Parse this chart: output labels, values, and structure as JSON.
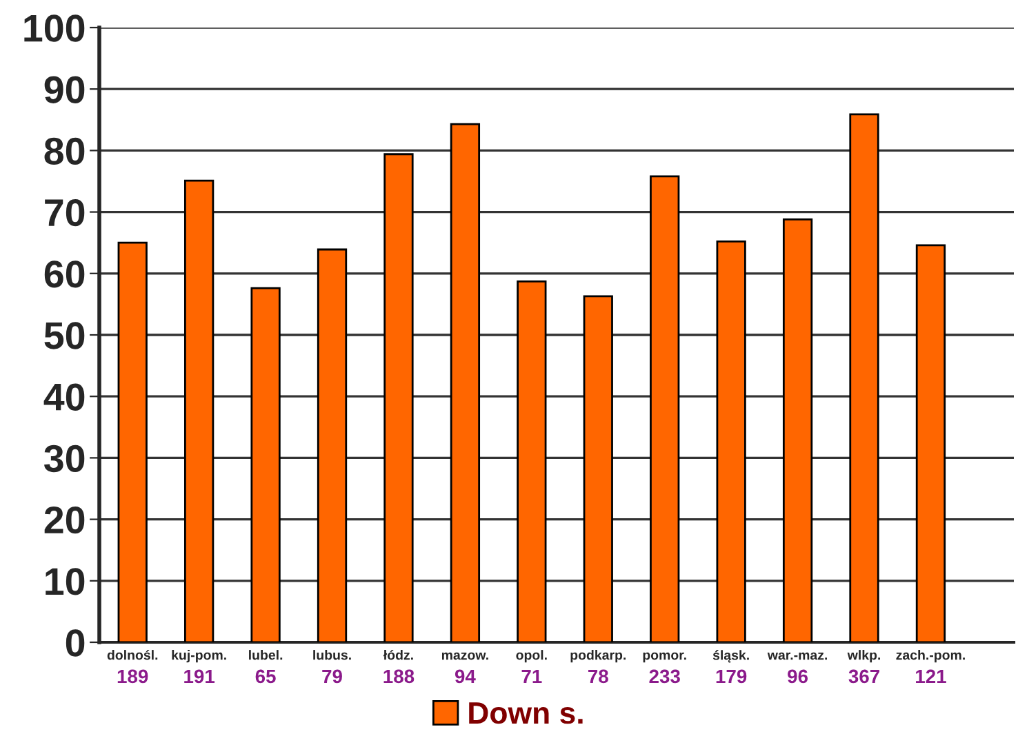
{
  "chart_data": {
    "type": "bar",
    "categories": [
      "dolnośl.",
      "kuj-pom.",
      "lubel.",
      "lubus.",
      "łódz.",
      "mazow.",
      "opol.",
      "podkarp.",
      "pomor.",
      "śląsk.",
      "war.-maz.",
      "wlkp.",
      "zach.-pom."
    ],
    "series": [
      {
        "name": "Down s.",
        "color": "#ff6600",
        "values": [
          65.0,
          75.1,
          57.6,
          63.9,
          79.4,
          84.3,
          58.7,
          56.3,
          75.8,
          65.2,
          68.8,
          85.9,
          64.6
        ]
      }
    ],
    "ylim": [
      0,
      100
    ],
    "yticks": [
      0,
      10,
      20,
      30,
      40,
      50,
      60,
      70,
      80,
      90,
      100
    ],
    "grid": "y",
    "legend": "bottom",
    "annotations": [
      "189",
      "191",
      "65",
      "79",
      "188",
      "94",
      "71",
      "78",
      "233",
      "179",
      "96",
      "367",
      "121"
    ]
  }
}
